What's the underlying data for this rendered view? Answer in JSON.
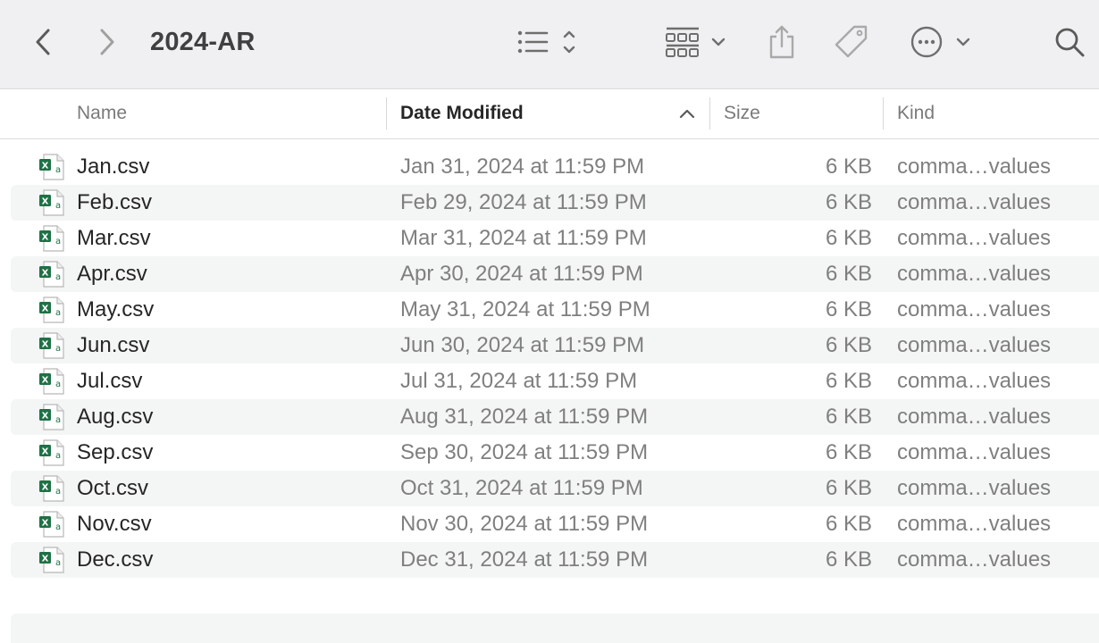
{
  "toolbar": {
    "folder_title": "2024-AR",
    "icons": {
      "back": "chevron-left-icon",
      "forward": "chevron-right-icon",
      "view_list": "list-view-icon",
      "group": "grid-group-icon",
      "share": "share-icon",
      "tag": "tag-icon",
      "more": "ellipsis-circle-icon",
      "search": "search-icon"
    }
  },
  "columns": {
    "name": "Name",
    "date_modified": "Date Modified",
    "size": "Size",
    "kind": "Kind"
  },
  "sort": {
    "column": "date_modified",
    "direction": "ascending"
  },
  "files": [
    {
      "name": "Jan.csv",
      "date": "Jan 31, 2024 at 11:59 PM",
      "size": "6 KB",
      "kind": "comma…values"
    },
    {
      "name": "Feb.csv",
      "date": "Feb 29, 2024 at 11:59 PM",
      "size": "6 KB",
      "kind": "comma…values"
    },
    {
      "name": "Mar.csv",
      "date": "Mar 31, 2024 at 11:59 PM",
      "size": "6 KB",
      "kind": "comma…values"
    },
    {
      "name": "Apr.csv",
      "date": "Apr 30, 2024 at 11:59 PM",
      "size": "6 KB",
      "kind": "comma…values"
    },
    {
      "name": "May.csv",
      "date": "May 31, 2024 at 11:59 PM",
      "size": "6 KB",
      "kind": "comma…values"
    },
    {
      "name": "Jun.csv",
      "date": "Jun 30, 2024 at 11:59 PM",
      "size": "6 KB",
      "kind": "comma…values"
    },
    {
      "name": "Jul.csv",
      "date": "Jul 31, 2024 at 11:59 PM",
      "size": "6 KB",
      "kind": "comma…values"
    },
    {
      "name": "Aug.csv",
      "date": "Aug 31, 2024 at 11:59 PM",
      "size": "6 KB",
      "kind": "comma…values"
    },
    {
      "name": "Sep.csv",
      "date": "Sep 30, 2024 at 11:59 PM",
      "size": "6 KB",
      "kind": "comma…values"
    },
    {
      "name": "Oct.csv",
      "date": "Oct 31, 2024 at 11:59 PM",
      "size": "6 KB",
      "kind": "comma…values"
    },
    {
      "name": "Nov.csv",
      "date": "Nov 30, 2024 at 11:59 PM",
      "size": "6 KB",
      "kind": "comma…values"
    },
    {
      "name": "Dec.csv",
      "date": "Dec 31, 2024 at 11:59 PM",
      "size": "6 KB",
      "kind": "comma…values"
    }
  ],
  "file_icon": {
    "name": "excel-csv-file-icon",
    "badge_letter": "X",
    "accent": "#1e7145"
  },
  "colors": {
    "toolbar_bg": "#f0f0f2",
    "row_alt": "#f4f5f5",
    "icon_gray": "#6e6e6e",
    "icon_disabled": "#a9a9a9"
  }
}
